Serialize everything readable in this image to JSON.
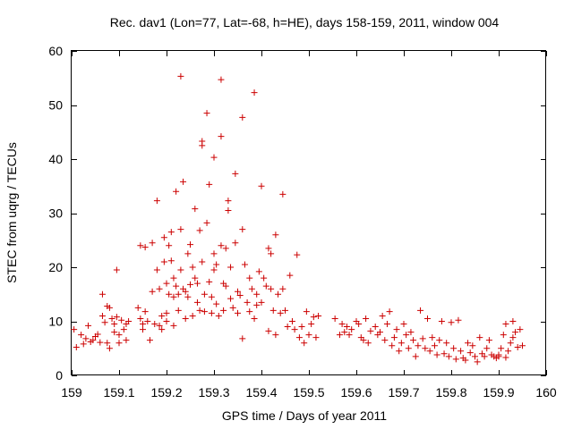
{
  "chart_data": {
    "type": "scatter",
    "title": "Rec. dav1 (Lon=77, Lat=-68, h=HE), days 158-159, 2011, window 004",
    "xlabel": "GPS time / Days of year 2011",
    "ylabel": "STEC from uqrg / TECUs",
    "xlim": [
      159,
      160
    ],
    "ylim": [
      0,
      60
    ],
    "xticks": [
      159,
      159.1,
      159.2,
      159.3,
      159.4,
      159.5,
      159.6,
      159.7,
      159.8,
      159.9,
      160
    ],
    "xtick_labels": [
      "159",
      "159.1",
      "159.2",
      "159.3",
      "159.4",
      "159.5",
      "159.6",
      "159.7",
      "159.8",
      "159.9",
      "160"
    ],
    "yticks": [
      0,
      10,
      20,
      30,
      40,
      50,
      60
    ],
    "ytick_labels": [
      "0",
      "10",
      "20",
      "30",
      "40",
      "50",
      "60"
    ],
    "grid": false,
    "marker": "plus",
    "color": "#cc0000",
    "points": [
      [
        159.005,
        8.5
      ],
      [
        159.01,
        5.2
      ],
      [
        159.02,
        7.5
      ],
      [
        159.025,
        5.8
      ],
      [
        159.03,
        6.8
      ],
      [
        159.035,
        9.2
      ],
      [
        159.04,
        6.2
      ],
      [
        159.045,
        6.5
      ],
      [
        159.05,
        7.2
      ],
      [
        159.055,
        7.6
      ],
      [
        159.06,
        6.1
      ],
      [
        159.065,
        11.0
      ],
      [
        159.065,
        15.0
      ],
      [
        159.07,
        9.8
      ],
      [
        159.075,
        6.0
      ],
      [
        159.075,
        12.8
      ],
      [
        159.08,
        5.0
      ],
      [
        159.08,
        12.5
      ],
      [
        159.085,
        10.5
      ],
      [
        159.09,
        9.5
      ],
      [
        159.09,
        8.0
      ],
      [
        159.095,
        19.5
      ],
      [
        159.095,
        10.8
      ],
      [
        159.1,
        7.5
      ],
      [
        159.1,
        6.0
      ],
      [
        159.105,
        10.2
      ],
      [
        159.11,
        8.5
      ],
      [
        159.115,
        9.5
      ],
      [
        159.115,
        6.5
      ],
      [
        159.12,
        10.0
      ],
      [
        159.14,
        12.5
      ],
      [
        159.145,
        10.5
      ],
      [
        159.145,
        24.0
      ],
      [
        159.15,
        9.5
      ],
      [
        159.15,
        8.5
      ],
      [
        159.155,
        23.7
      ],
      [
        159.155,
        11.8
      ],
      [
        159.16,
        10.0
      ],
      [
        159.165,
        6.5
      ],
      [
        159.17,
        24.5
      ],
      [
        159.17,
        15.5
      ],
      [
        159.175,
        9.5
      ],
      [
        159.18,
        32.3
      ],
      [
        159.18,
        19.5
      ],
      [
        159.185,
        16.0
      ],
      [
        159.185,
        9.2
      ],
      [
        159.19,
        8.5
      ],
      [
        159.19,
        11.0
      ],
      [
        159.195,
        25.5
      ],
      [
        159.195,
        21.0
      ],
      [
        159.2,
        17.0
      ],
      [
        159.2,
        11.5
      ],
      [
        159.2,
        10.0
      ],
      [
        159.205,
        24.0
      ],
      [
        159.205,
        15.0
      ],
      [
        159.21,
        26.5
      ],
      [
        159.21,
        21.2
      ],
      [
        159.215,
        18.0
      ],
      [
        159.215,
        14.5
      ],
      [
        159.215,
        9.2
      ],
      [
        159.22,
        34.0
      ],
      [
        159.22,
        16.5
      ],
      [
        159.225,
        15.0
      ],
      [
        159.225,
        12.0
      ],
      [
        159.23,
        55.3
      ],
      [
        159.23,
        27.0
      ],
      [
        159.23,
        19.5
      ],
      [
        159.235,
        35.8
      ],
      [
        159.235,
        16.0
      ],
      [
        159.24,
        15.5
      ],
      [
        159.24,
        10.5
      ],
      [
        159.245,
        22.5
      ],
      [
        159.245,
        14.5
      ],
      [
        159.25,
        24.2
      ],
      [
        159.25,
        16.8
      ],
      [
        159.255,
        20.0
      ],
      [
        159.255,
        11.0
      ],
      [
        159.26,
        30.8
      ],
      [
        159.26,
        18.0
      ],
      [
        159.265,
        17.0
      ],
      [
        159.265,
        13.5
      ],
      [
        159.27,
        26.8
      ],
      [
        159.27,
        12.0
      ],
      [
        159.275,
        43.3
      ],
      [
        159.275,
        42.5
      ],
      [
        159.275,
        21.0
      ],
      [
        159.28,
        15.0
      ],
      [
        159.28,
        11.8
      ],
      [
        159.285,
        48.5
      ],
      [
        159.285,
        28.2
      ],
      [
        159.29,
        35.3
      ],
      [
        159.29,
        17.3
      ],
      [
        159.295,
        14.5
      ],
      [
        159.295,
        11.5
      ],
      [
        159.3,
        40.3
      ],
      [
        159.3,
        22.5
      ],
      [
        159.3,
        19.5
      ],
      [
        159.305,
        20.5
      ],
      [
        159.305,
        13.2
      ],
      [
        159.31,
        11.0
      ],
      [
        159.315,
        54.7
      ],
      [
        159.315,
        44.2
      ],
      [
        159.315,
        24.0
      ],
      [
        159.32,
        17.0
      ],
      [
        159.32,
        12.0
      ],
      [
        159.325,
        23.5
      ],
      [
        159.325,
        16.5
      ],
      [
        159.33,
        32.3
      ],
      [
        159.33,
        30.5
      ],
      [
        159.335,
        20.0
      ],
      [
        159.335,
        14.2
      ],
      [
        159.34,
        12.5
      ],
      [
        159.345,
        37.3
      ],
      [
        159.345,
        24.5
      ],
      [
        159.35,
        15.5
      ],
      [
        159.35,
        11.5
      ],
      [
        159.355,
        14.8
      ],
      [
        159.36,
        47.7
      ],
      [
        159.36,
        27.0
      ],
      [
        159.36,
        6.8
      ],
      [
        159.365,
        20.5
      ],
      [
        159.37,
        13.5
      ],
      [
        159.375,
        18.0
      ],
      [
        159.375,
        11.8
      ],
      [
        159.38,
        16.0
      ],
      [
        159.385,
        52.3
      ],
      [
        159.385,
        10.5
      ],
      [
        159.39,
        15.0
      ],
      [
        159.39,
        13.0
      ],
      [
        159.395,
        19.2
      ],
      [
        159.4,
        35.0
      ],
      [
        159.4,
        13.5
      ],
      [
        159.405,
        18.0
      ],
      [
        159.41,
        16.5
      ],
      [
        159.415,
        23.5
      ],
      [
        159.415,
        8.2
      ],
      [
        159.42,
        22.5
      ],
      [
        159.42,
        16.0
      ],
      [
        159.425,
        12.0
      ],
      [
        159.43,
        26.0
      ],
      [
        159.43,
        7.5
      ],
      [
        159.435,
        15.0
      ],
      [
        159.44,
        11.5
      ],
      [
        159.445,
        33.5
      ],
      [
        159.445,
        16.0
      ],
      [
        159.45,
        12.0
      ],
      [
        159.455,
        9.0
      ],
      [
        159.46,
        18.5
      ],
      [
        159.465,
        10.0
      ],
      [
        159.47,
        8.5
      ],
      [
        159.475,
        22.3
      ],
      [
        159.48,
        7.0
      ],
      [
        159.485,
        9.0
      ],
      [
        159.49,
        6.0
      ],
      [
        159.495,
        11.8
      ],
      [
        159.5,
        7.5
      ],
      [
        159.505,
        9.5
      ],
      [
        159.51,
        10.8
      ],
      [
        159.515,
        7.0
      ],
      [
        159.52,
        11.0
      ],
      [
        159.555,
        10.5
      ],
      [
        159.565,
        7.5
      ],
      [
        159.57,
        9.5
      ],
      [
        159.575,
        8.0
      ],
      [
        159.58,
        9.0
      ],
      [
        159.585,
        7.5
      ],
      [
        159.59,
        8.5
      ],
      [
        159.6,
        10.0
      ],
      [
        159.605,
        9.5
      ],
      [
        159.61,
        7.0
      ],
      [
        159.615,
        6.5
      ],
      [
        159.62,
        10.5
      ],
      [
        159.625,
        6.0
      ],
      [
        159.63,
        8.2
      ],
      [
        159.64,
        9.0
      ],
      [
        159.645,
        7.5
      ],
      [
        159.65,
        8.0
      ],
      [
        159.655,
        11.0
      ],
      [
        159.66,
        6.5
      ],
      [
        159.665,
        9.5
      ],
      [
        159.67,
        11.8
      ],
      [
        159.675,
        5.5
      ],
      [
        159.68,
        7.0
      ],
      [
        159.685,
        8.5
      ],
      [
        159.69,
        4.5
      ],
      [
        159.695,
        6.0
      ],
      [
        159.7,
        9.5
      ],
      [
        159.705,
        7.5
      ],
      [
        159.71,
        5.0
      ],
      [
        159.715,
        8.0
      ],
      [
        159.72,
        6.5
      ],
      [
        159.725,
        3.5
      ],
      [
        159.73,
        5.5
      ],
      [
        159.735,
        12.0
      ],
      [
        159.74,
        6.8
      ],
      [
        159.745,
        5.0
      ],
      [
        159.75,
        10.5
      ],
      [
        159.755,
        4.5
      ],
      [
        159.76,
        7.0
      ],
      [
        159.765,
        5.5
      ],
      [
        159.77,
        3.8
      ],
      [
        159.775,
        6.5
      ],
      [
        159.78,
        10.0
      ],
      [
        159.785,
        4.0
      ],
      [
        159.79,
        6.0
      ],
      [
        159.795,
        3.5
      ],
      [
        159.8,
        9.8
      ],
      [
        159.805,
        5.0
      ],
      [
        159.81,
        3.0
      ],
      [
        159.815,
        10.2
      ],
      [
        159.82,
        4.5
      ],
      [
        159.825,
        3.2
      ],
      [
        159.83,
        2.8
      ],
      [
        159.835,
        6.0
      ],
      [
        159.84,
        4.2
      ],
      [
        159.845,
        5.5
      ],
      [
        159.85,
        3.5
      ],
      [
        159.855,
        2.5
      ],
      [
        159.86,
        7.0
      ],
      [
        159.865,
        4.0
      ],
      [
        159.87,
        3.5
      ],
      [
        159.875,
        5.0
      ],
      [
        159.88,
        6.5
      ],
      [
        159.885,
        3.8
      ],
      [
        159.89,
        3.5
      ],
      [
        159.895,
        3.2
      ],
      [
        159.9,
        3.5
      ],
      [
        159.905,
        5.0
      ],
      [
        159.91,
        7.5
      ],
      [
        159.915,
        9.5
      ],
      [
        159.92,
        4.5
      ],
      [
        159.925,
        6.0
      ],
      [
        159.93,
        10.0
      ],
      [
        159.935,
        8.0
      ],
      [
        159.94,
        5.2
      ],
      [
        159.945,
        8.5
      ],
      [
        159.95,
        5.5
      ],
      [
        159.93,
        7.0
      ],
      [
        159.915,
        3.3
      ],
      [
        159.9,
        3.8
      ]
    ]
  }
}
